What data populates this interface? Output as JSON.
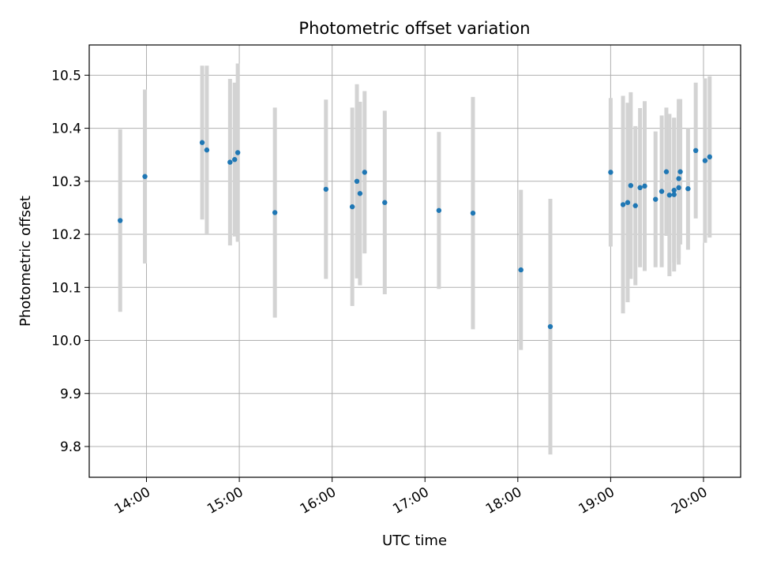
{
  "chart_data": {
    "type": "scatter",
    "title": "Photometric offset variation",
    "xlabel": "UTC time",
    "ylabel": "Photometric offset",
    "xlim": [
      "13:23",
      "20:24"
    ],
    "ylim": [
      9.742,
      10.557
    ],
    "grid": true,
    "x_ticks": [
      "14:00",
      "15:00",
      "16:00",
      "17:00",
      "18:00",
      "19:00",
      "20:00"
    ],
    "y_ticks": [
      "9.8",
      "9.9",
      "10.0",
      "10.1",
      "10.2",
      "10.3",
      "10.4",
      "10.5"
    ],
    "colors": {
      "marker": "#1f77b4",
      "errorbar": "#d3d3d3",
      "grid": "#b0b0b0"
    },
    "points": [
      {
        "x": "13:43",
        "y": 10.226,
        "err": 0.172
      },
      {
        "x": "13:59",
        "y": 10.309,
        "err": 0.164
      },
      {
        "x": "14:36",
        "y": 10.373,
        "err": 0.145
      },
      {
        "x": "14:39",
        "y": 10.359,
        "err": 0.159
      },
      {
        "x": "14:54",
        "y": 10.336,
        "err": 0.157
      },
      {
        "x": "14:57",
        "y": 10.341,
        "err": 0.145
      },
      {
        "x": "14:59",
        "y": 10.354,
        "err": 0.168
      },
      {
        "x": "15:23",
        "y": 10.241,
        "err": 0.198
      },
      {
        "x": "15:56",
        "y": 10.285,
        "err": 0.169
      },
      {
        "x": "16:13",
        "y": 10.252,
        "err": 0.187
      },
      {
        "x": "16:16",
        "y": 10.3,
        "err": 0.183
      },
      {
        "x": "16:18",
        "y": 10.277,
        "err": 0.173
      },
      {
        "x": "16:21",
        "y": 10.317,
        "err": 0.153
      },
      {
        "x": "16:34",
        "y": 10.26,
        "err": 0.173
      },
      {
        "x": "17:09",
        "y": 10.245,
        "err": 0.148
      },
      {
        "x": "17:31",
        "y": 10.24,
        "err": 0.219
      },
      {
        "x": "18:02",
        "y": 10.133,
        "err": 0.151
      },
      {
        "x": "18:21",
        "y": 10.026,
        "err": 0.241
      },
      {
        "x": "19:00",
        "y": 10.317,
        "err": 0.14
      },
      {
        "x": "19:08",
        "y": 10.256,
        "err": 0.205
      },
      {
        "x": "19:11",
        "y": 10.26,
        "err": 0.188
      },
      {
        "x": "19:13",
        "y": 10.292,
        "err": 0.176
      },
      {
        "x": "19:16",
        "y": 10.254,
        "err": 0.15
      },
      {
        "x": "19:19",
        "y": 10.288,
        "err": 0.15
      },
      {
        "x": "19:22",
        "y": 10.291,
        "err": 0.16
      },
      {
        "x": "19:29",
        "y": 10.266,
        "err": 0.128
      },
      {
        "x": "19:33",
        "y": 10.281,
        "err": 0.143
      },
      {
        "x": "19:36",
        "y": 10.318,
        "err": 0.121
      },
      {
        "x": "19:38",
        "y": 10.274,
        "err": 0.153
      },
      {
        "x": "19:41",
        "y": 10.275,
        "err": 0.145
      },
      {
        "x": "19:41",
        "y": 10.283,
        "err": 0.136
      },
      {
        "x": "19:44",
        "y": 10.288,
        "err": 0.145
      },
      {
        "x": "19:44",
        "y": 10.305,
        "err": 0.15
      },
      {
        "x": "19:45",
        "y": 10.318,
        "err": 0.137
      },
      {
        "x": "19:50",
        "y": 10.286,
        "err": 0.115
      },
      {
        "x": "19:55",
        "y": 10.358,
        "err": 0.128
      },
      {
        "x": "20:01",
        "y": 10.339,
        "err": 0.155
      },
      {
        "x": "20:04",
        "y": 10.346,
        "err": 0.152
      }
    ]
  }
}
